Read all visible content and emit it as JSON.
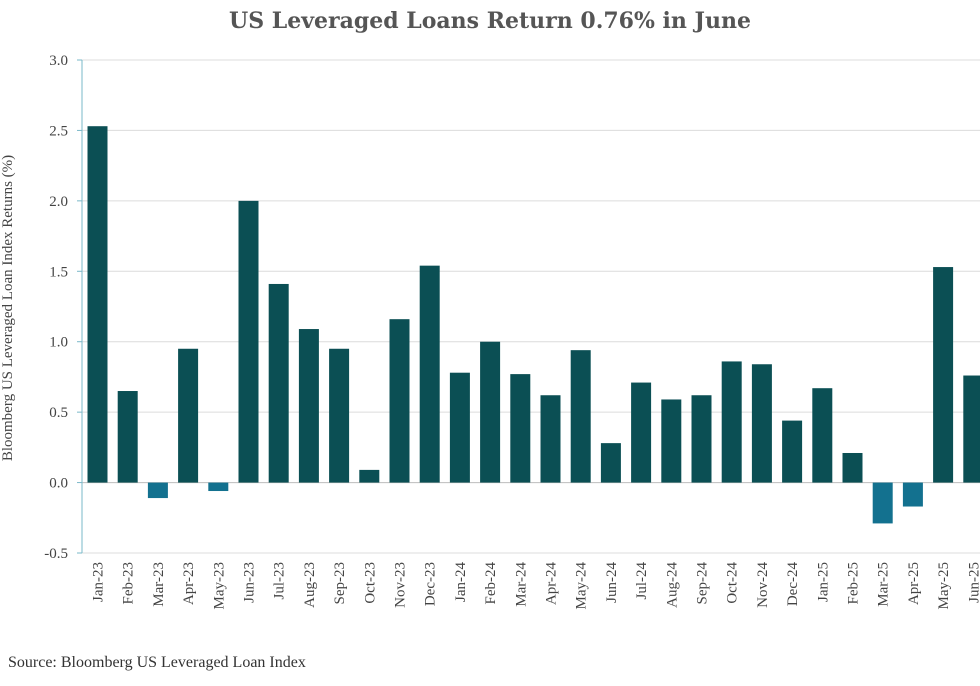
{
  "title": "US Leveraged Loans Return 0.76% in June",
  "source": "Source: Bloomberg US Leveraged Loan Index",
  "chart_data": {
    "type": "bar",
    "title": "US Leveraged Loans Return 0.76% in June",
    "xlabel": "",
    "ylabel": "Bloomberg US Leveraged Loan Index Returns (%)",
    "ylim": [
      -0.5,
      3.0
    ],
    "yticks": [
      -0.5,
      0.0,
      0.5,
      1.0,
      1.5,
      2.0,
      2.5,
      3.0
    ],
    "ytick_labels": [
      "-0.5",
      "0.0",
      "0.5",
      "1.0",
      "1.5",
      "2.0",
      "2.5",
      "3.0"
    ],
    "grid": true,
    "legend": "none",
    "colors": {
      "positive": "#0b4f54",
      "negative": "#13718f",
      "grid": "#dcdcdc",
      "axis": "#7ab8c9"
    },
    "categories": [
      "Jan-23",
      "Feb-23",
      "Mar-23",
      "Apr-23",
      "May-23",
      "Jun-23",
      "Jul-23",
      "Aug-23",
      "Sep-23",
      "Oct-23",
      "Nov-23",
      "Dec-23",
      "Jan-24",
      "Feb-24",
      "Mar-24",
      "Apr-24",
      "May-24",
      "Jun-24",
      "Jul-24",
      "Aug-24",
      "Sep-24",
      "Oct-24",
      "Nov-24",
      "Dec-24",
      "Jan-25",
      "Feb-25",
      "Mar-25",
      "Apr-25",
      "May-25",
      "Jun-25"
    ],
    "values": [
      2.53,
      0.65,
      -0.11,
      0.95,
      -0.06,
      2.0,
      1.41,
      1.09,
      0.95,
      0.09,
      1.16,
      1.54,
      0.78,
      1.0,
      0.77,
      0.62,
      0.94,
      0.28,
      0.71,
      0.59,
      0.62,
      0.86,
      0.84,
      0.44,
      0.67,
      0.21,
      -0.29,
      -0.17,
      1.53,
      0.76
    ]
  }
}
